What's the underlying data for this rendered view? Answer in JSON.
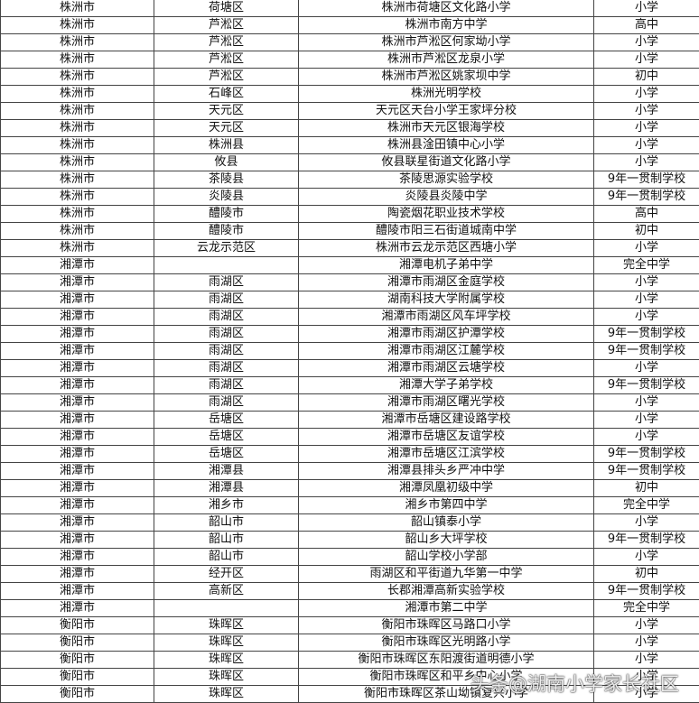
{
  "table": {
    "rows": [
      [
        "株洲市",
        "荷塘区",
        "株洲市荷塘区文化路小学",
        "小学"
      ],
      [
        "株洲市",
        "芦淞区",
        "株洲市南方中学",
        "高中"
      ],
      [
        "株洲市",
        "芦淞区",
        "株洲市芦淞区何家坳小学",
        "小学"
      ],
      [
        "株洲市",
        "芦淞区",
        "株洲市芦淞区龙泉小学",
        "小学"
      ],
      [
        "株洲市",
        "芦淞区",
        "株洲市芦淞区姚家坝中学",
        "初中"
      ],
      [
        "株洲市",
        "石峰区",
        "株洲光明学校",
        "小学"
      ],
      [
        "株洲市",
        "天元区",
        "天元区天台小学王家坪分校",
        "小学"
      ],
      [
        "株洲市",
        "天元区",
        "株洲市天元区银海学校",
        "小学"
      ],
      [
        "株洲市",
        "株洲县",
        "株洲县淦田镇中心小学",
        "小学"
      ],
      [
        "株洲市",
        "攸县",
        "攸县联星街道文化路小学",
        "小学"
      ],
      [
        "株洲市",
        "茶陵县",
        "茶陵思源实验学校",
        "9年一贯制学校"
      ],
      [
        "株洲市",
        "炎陵县",
        "炎陵县炎陵中学",
        "9年一贯制学校"
      ],
      [
        "株洲市",
        "醴陵市",
        "陶瓷烟花职业技术学校",
        "高中"
      ],
      [
        "株洲市",
        "醴陵市",
        "醴陵市阳三石街道城南中学",
        "初中"
      ],
      [
        "株洲市",
        "云龙示范区",
        "株洲市云龙示范区西塘小学",
        "小学"
      ],
      [
        "湘潭市",
        null,
        "湘潭电机子弟中学",
        "完全中学"
      ],
      [
        "湘潭市",
        "雨湖区",
        "湘潭市雨湖区金庭学校",
        "小学"
      ],
      [
        "湘潭市",
        "雨湖区",
        "湖南科技大学附属学校",
        "小学"
      ],
      [
        "湘潭市",
        "雨湖区",
        "湘潭市雨湖区风车坪学校",
        "小学"
      ],
      [
        "湘潭市",
        "雨湖区",
        "湘潭市雨湖区护潭学校",
        "9年一贯制学校"
      ],
      [
        "湘潭市",
        "雨湖区",
        "湘潭市雨湖区江麓学校",
        "9年一贯制学校"
      ],
      [
        "湘潭市",
        "雨湖区",
        "湘潭市雨湖区云塘学校",
        "小学"
      ],
      [
        "湘潭市",
        "雨湖区",
        "湘潭大学子弟学校",
        "9年一贯制学校"
      ],
      [
        "湘潭市",
        "雨湖区",
        "湘潭市雨湖区曙光学校",
        "小学"
      ],
      [
        "湘潭市",
        "岳塘区",
        "湘潭市岳塘区建设路学校",
        "小学"
      ],
      [
        "湘潭市",
        "岳塘区",
        "湘潭市岳塘区友谊学校",
        "小学"
      ],
      [
        "湘潭市",
        "岳塘区",
        "湘潭市岳塘区江滨学校",
        "9年一贯制学校"
      ],
      [
        "湘潭市",
        "湘潭县",
        "湘潭县排头乡严冲中学",
        "9年一贯制学校"
      ],
      [
        "湘潭市",
        "湘潭县",
        "湘潭凤凰初级中学",
        "初中"
      ],
      [
        "湘潭市",
        "湘乡市",
        "湘乡市第四中学",
        "完全中学"
      ],
      [
        "湘潭市",
        "韶山市",
        "韶山镇泰小学",
        "小学"
      ],
      [
        "湘潭市",
        "韶山市",
        "韶山乡大坪学校",
        "9年一贯制学校"
      ],
      [
        "湘潭市",
        "韶山市",
        "韶山学校小学部",
        "小学"
      ],
      [
        "湘潭市",
        "经开区",
        "雨湖区和平街道九华第一中学",
        "初中"
      ],
      [
        "湘潭市",
        "高新区",
        "长郡湘潭高新实验学校",
        "9年一贯制学校"
      ],
      [
        "湘潭市",
        null,
        "湘潭市第二中学",
        "完全中学"
      ],
      [
        "衡阳市",
        "珠晖区",
        "衡阳市珠晖区马路口小学",
        "小学"
      ],
      [
        "衡阳市",
        "珠晖区",
        "衡阳市珠晖区光明路小学",
        "小学"
      ],
      [
        "衡阳市",
        "珠晖区",
        "衡阳市珠晖区东阳渡街道明德小学",
        "小学"
      ],
      [
        "衡阳市",
        "珠晖区",
        "衡阳市珠晖区和平乡中心小学",
        "小学"
      ],
      [
        "衡阳市",
        "珠晖区",
        "衡阳市珠晖区茶山坳镇复兴小学",
        "小学"
      ]
    ]
  },
  "watermark": "头条@湖南小学家长社区"
}
